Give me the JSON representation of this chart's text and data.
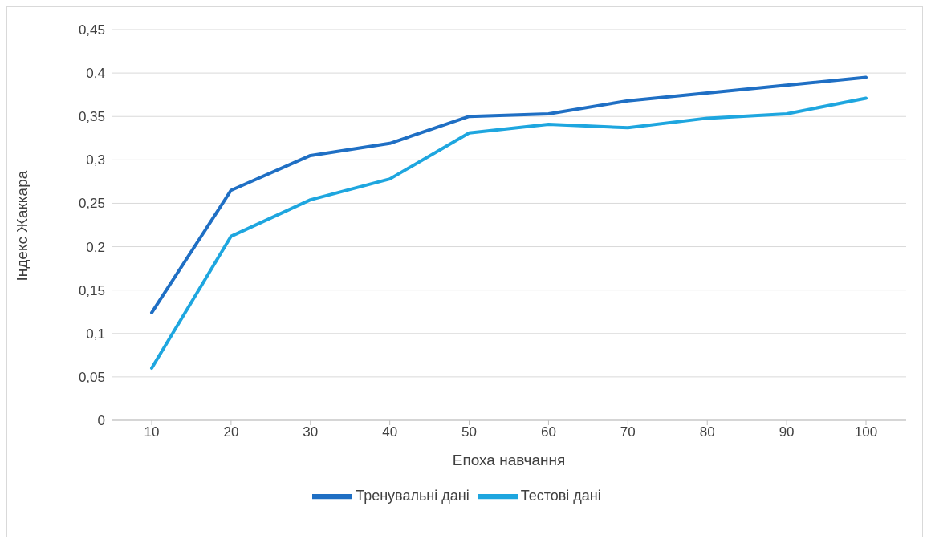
{
  "chart_data": {
    "type": "line",
    "xlabel": "Епоха навчання",
    "ylabel": "Індекс Жаккара",
    "categories": [
      "10",
      "20",
      "30",
      "40",
      "50",
      "60",
      "70",
      "80",
      "90",
      "100"
    ],
    "series": [
      {
        "name": "Тренувальні дані",
        "color": "#1f6fc4",
        "values": [
          0.124,
          0.265,
          0.305,
          0.319,
          0.35,
          0.353,
          0.368,
          0.377,
          0.386,
          0.395
        ]
      },
      {
        "name": "Тестові дані",
        "color": "#1ea6df",
        "values": [
          0.06,
          0.212,
          0.254,
          0.278,
          0.331,
          0.341,
          0.337,
          0.348,
          0.353,
          0.371
        ]
      }
    ],
    "ylim": [
      0,
      0.45
    ],
    "yticks": [
      0,
      {
        "value": 0.05,
        "label": "0,05"
      },
      {
        "value": 0.1,
        "label": "0,1"
      },
      {
        "value": 0.15,
        "label": "0,15"
      },
      {
        "value": 0.2,
        "label": "0,2"
      },
      {
        "value": 0.25,
        "label": "0,25"
      },
      {
        "value": 0.3,
        "label": "0,3"
      },
      {
        "value": 0.35,
        "label": "0,35"
      },
      {
        "value": 0.4,
        "label": "0,4"
      },
      {
        "value": 0.45,
        "label": "0,45"
      }
    ],
    "grid": "y",
    "legend": "bottom",
    "marker": "none",
    "line_style": "solid"
  }
}
